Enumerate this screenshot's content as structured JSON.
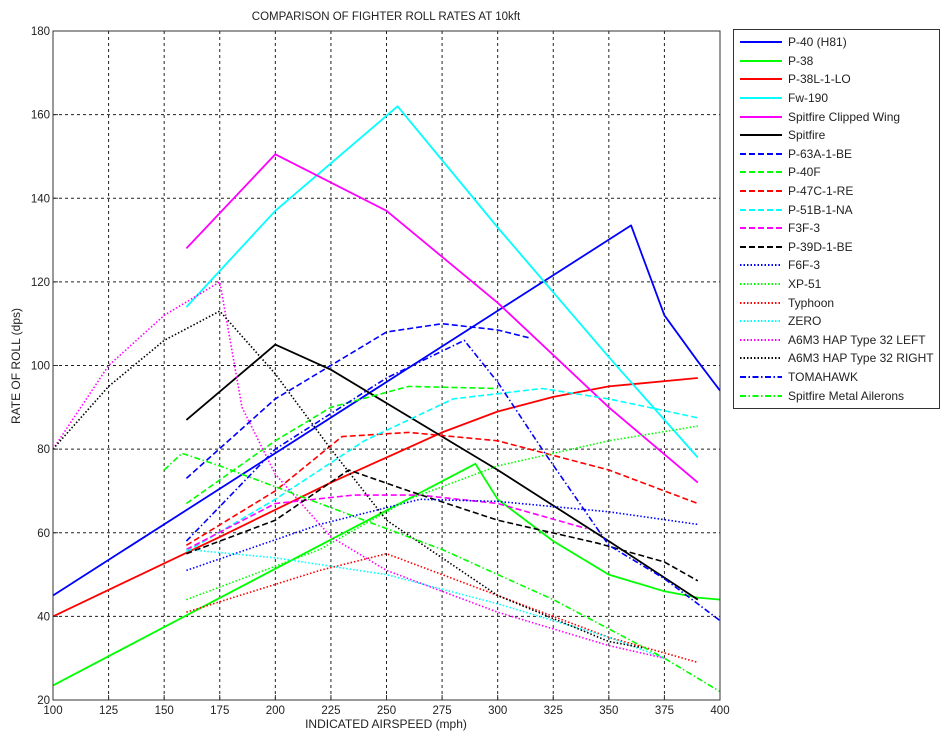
{
  "chart_data": {
    "type": "line",
    "title": "COMPARISON OF FIGHTER ROLL RATES AT 10kft",
    "xlabel": "INDICATED AIRSPEED (mph)",
    "ylabel": "RATE OF ROLL (dps)",
    "xlim": [
      100,
      400
    ],
    "ylim": [
      20,
      180
    ],
    "xticks": [
      100,
      125,
      150,
      175,
      200,
      225,
      250,
      275,
      300,
      325,
      350,
      375,
      400
    ],
    "yticks": [
      20,
      40,
      60,
      80,
      100,
      120,
      140,
      160,
      180
    ],
    "grid": true,
    "legend_position": "outside-right",
    "series": [
      {
        "name": "P-40 (H81)",
        "color": "#0000ff",
        "style": "solid",
        "x": [
          100,
          360,
          375,
          390,
          400
        ],
        "y": [
          45,
          133.5,
          112,
          101,
          94
        ]
      },
      {
        "name": "P-38",
        "color": "#00ff00",
        "style": "solid",
        "x": [
          100,
          290,
          300,
          325,
          350,
          375,
          390,
          400
        ],
        "y": [
          23.5,
          76.5,
          68,
          58,
          50,
          46,
          44.5,
          44
        ]
      },
      {
        "name": "P-38L-1-LO",
        "color": "#ff0000",
        "style": "solid",
        "x": [
          100,
          175,
          225,
          275,
          300,
          325,
          350,
          390
        ],
        "y": [
          40,
          59,
          72,
          84,
          89,
          92.5,
          95,
          97
        ]
      },
      {
        "name": "Fw-190",
        "color": "#00ffff",
        "style": "solid",
        "x": [
          160,
          200,
          255,
          300,
          350,
          390
        ],
        "y": [
          114,
          137,
          162,
          133,
          102,
          78
        ]
      },
      {
        "name": "Spitfire Clipped Wing",
        "color": "#ff00ff",
        "style": "solid",
        "x": [
          160,
          200,
          250,
          300,
          350,
          390
        ],
        "y": [
          128,
          150.5,
          137,
          115,
          90,
          72
        ]
      },
      {
        "name": "Spitfire",
        "color": "#000000",
        "style": "solid",
        "x": [
          160,
          200,
          225,
          250,
          300,
          350,
          390
        ],
        "y": [
          87,
          105,
          99,
          91,
          75,
          58,
          44
        ]
      },
      {
        "name": "P-63A-1-BE",
        "color": "#0000ff",
        "style": "dashed",
        "x": [
          160,
          200,
          250,
          275,
          300,
          315
        ],
        "y": [
          73,
          92,
          108,
          110,
          108.5,
          106.5
        ]
      },
      {
        "name": "P-40F",
        "color": "#00ff00",
        "style": "dashed",
        "x": [
          160,
          200,
          225,
          260,
          300
        ],
        "y": [
          67,
          82,
          90,
          95,
          94.5
        ]
      },
      {
        "name": "P-47C-1-RE",
        "color": "#ff0000",
        "style": "dashed",
        "x": [
          160,
          200,
          230,
          260,
          300,
          350,
          390
        ],
        "y": [
          57,
          70,
          83,
          84,
          82,
          75,
          67
        ]
      },
      {
        "name": "P-51B-1-NA",
        "color": "#00ffff",
        "style": "dashed",
        "x": [
          160,
          200,
          240,
          280,
          320,
          350,
          390
        ],
        "y": [
          55.5,
          68,
          82,
          92,
          94.5,
          92,
          87.5
        ]
      },
      {
        "name": "F3F-3",
        "color": "#ff00ff",
        "style": "dashed",
        "x": [
          160,
          200,
          235,
          265,
          300,
          340
        ],
        "y": [
          56,
          67,
          69,
          69,
          67,
          61
        ]
      },
      {
        "name": "P-39D-1-BE",
        "color": "#000000",
        "style": "dashed",
        "x": [
          160,
          200,
          233,
          260,
          300,
          345,
          375,
          390
        ],
        "y": [
          55,
          63,
          75,
          70,
          63,
          57.5,
          53,
          48.5
        ]
      },
      {
        "name": "F6F-3",
        "color": "#0000ff",
        "style": "dotted",
        "x": [
          160,
          220,
          265,
          300,
          350,
          390
        ],
        "y": [
          51,
          62,
          68,
          67.5,
          65,
          62
        ]
      },
      {
        "name": "XP-51",
        "color": "#00ff00",
        "style": "dotted",
        "x": [
          160,
          220,
          260,
          300,
          350,
          390
        ],
        "y": [
          44,
          56,
          68,
          76,
          82,
          85.5
        ]
      },
      {
        "name": "Typhoon",
        "color": "#ff0000",
        "style": "dotted",
        "x": [
          160,
          220,
          250,
          300,
          350,
          390
        ],
        "y": [
          41,
          51,
          55,
          45,
          35,
          29
        ]
      },
      {
        "name": "ZERO",
        "color": "#00ffff",
        "style": "dotted",
        "x": [
          160,
          200,
          250,
          300,
          350,
          375
        ],
        "y": [
          56,
          54,
          50,
          43,
          35,
          30
        ]
      },
      {
        "name": "A6M3 HAP Type 32 LEFT",
        "color": "#ff00ff",
        "style": "dotted",
        "x": [
          100,
          125,
          150,
          175,
          185,
          200,
          225,
          250,
          300,
          350,
          375
        ],
        "y": [
          80,
          100,
          112,
          120,
          90,
          74,
          59,
          51,
          41,
          33,
          30
        ]
      },
      {
        "name": "A6M3 HAP Type 32 RIGHT",
        "color": "#000000",
        "style": "dotted",
        "x": [
          100,
          125,
          150,
          175,
          200,
          225,
          250,
          300,
          350,
          365
        ],
        "y": [
          80,
          95,
          106,
          113,
          98,
          80,
          63,
          45,
          34,
          32.5
        ]
      },
      {
        "name": "TOMAHAWK",
        "color": "#0000ff",
        "style": "dashdot",
        "x": [
          160,
          200,
          250,
          285,
          300,
          320,
          350,
          375,
          400
        ],
        "y": [
          58,
          80,
          97,
          106,
          96,
          80,
          57,
          49,
          39
        ]
      },
      {
        "name": "Spitfire Metal Ailerons",
        "color": "#00ff00",
        "style": "dashdot",
        "x": [
          150,
          158,
          175,
          225,
          275,
          325,
          375,
          400
        ],
        "y": [
          75,
          79,
          76,
          66,
          56,
          44,
          30,
          22
        ]
      }
    ]
  }
}
